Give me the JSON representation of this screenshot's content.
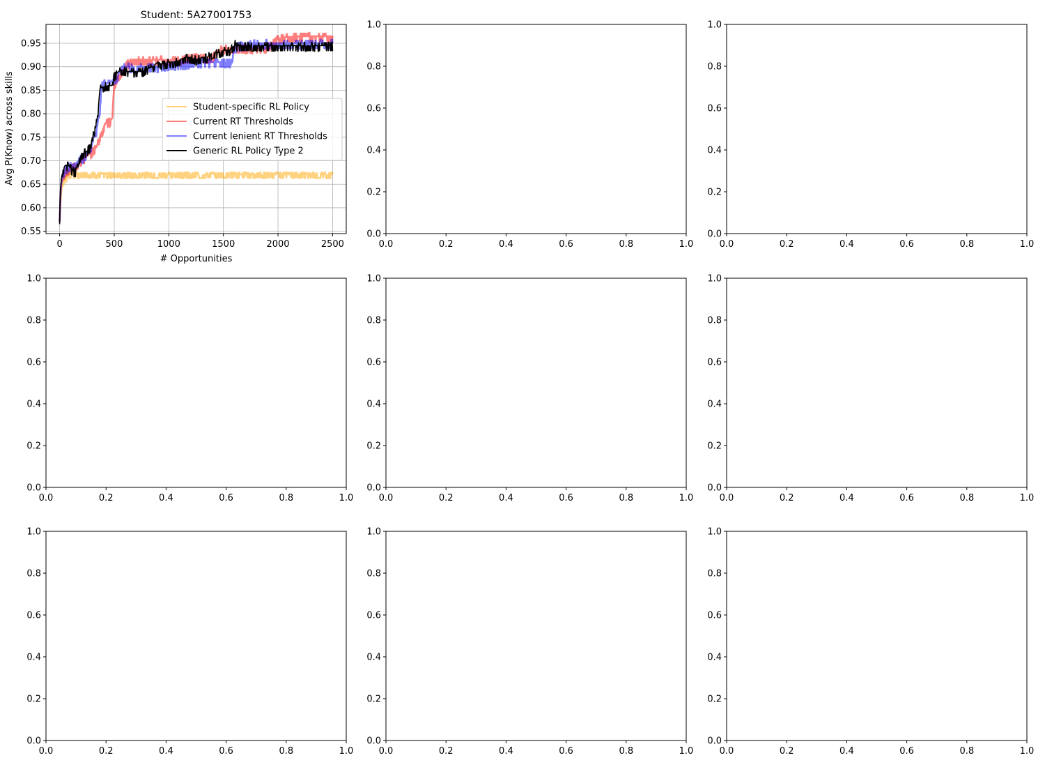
{
  "figure": {
    "background": "#ffffff"
  },
  "chart_data": [
    {
      "type": "line",
      "panel": 1,
      "title": "Student: 5A27001753",
      "xlabel": "# Opportunities",
      "ylabel": "Avg P(Know) across skills",
      "xlim": [
        -125,
        2625
      ],
      "ylim": [
        0.545,
        0.99
      ],
      "xticks": [
        0,
        500,
        1000,
        1500,
        2000,
        2500
      ],
      "yticks": [
        0.55,
        0.6,
        0.65,
        0.7,
        0.75,
        0.8,
        0.85,
        0.9,
        0.95
      ],
      "ytick_labels": [
        "0.55",
        "0.60",
        "0.65",
        "0.70",
        "0.75",
        "0.80",
        "0.85",
        "0.90",
        "0.95"
      ],
      "grid": true,
      "legend": "center-right",
      "series": [
        {
          "name": "Student-specific RL Policy",
          "color": "#ffa500",
          "opacity": 0.5,
          "low": 0.663,
          "high": 0.675,
          "x": [
            0,
            10,
            25,
            50,
            80,
            100,
            200,
            500,
            1000,
            1500,
            2000,
            2500
          ],
          "y": [
            0.57,
            0.62,
            0.655,
            0.665,
            0.67,
            0.67,
            0.67,
            0.67,
            0.67,
            0.67,
            0.67,
            0.67
          ]
        },
        {
          "name": "Current RT Thresholds",
          "color": "#ff0000",
          "opacity": 0.5,
          "x": [
            0,
            10,
            25,
            50,
            100,
            150,
            200,
            250,
            300,
            340,
            380,
            420,
            460,
            480,
            500,
            530,
            570,
            620,
            650,
            700,
            800,
            900,
            1000,
            1100,
            1200,
            1300,
            1400,
            1450,
            1500,
            1600,
            1700,
            1800,
            1900,
            2000,
            2100,
            2200,
            2300,
            2400,
            2500
          ],
          "y": [
            0.57,
            0.64,
            0.67,
            0.675,
            0.685,
            0.69,
            0.7,
            0.71,
            0.72,
            0.73,
            0.76,
            0.78,
            0.785,
            0.79,
            0.86,
            0.88,
            0.89,
            0.905,
            0.915,
            0.915,
            0.915,
            0.915,
            0.915,
            0.915,
            0.92,
            0.92,
            0.92,
            0.935,
            0.94,
            0.94,
            0.94,
            0.94,
            0.94,
            0.96,
            0.965,
            0.965,
            0.965,
            0.965,
            0.965
          ]
        },
        {
          "name": "Current lenient RT Thresholds",
          "color": "#0000ff",
          "opacity": 0.5,
          "x": [
            0,
            10,
            25,
            50,
            100,
            150,
            200,
            250,
            300,
            340,
            370,
            380,
            420,
            460,
            500,
            530,
            570,
            650,
            700,
            800,
            900,
            1000,
            1100,
            1150,
            1200,
            1300,
            1400,
            1500,
            1560,
            1620,
            1700,
            1800,
            1900,
            2000,
            2100,
            2200,
            2300,
            2400,
            2500
          ],
          "y": [
            0.57,
            0.64,
            0.67,
            0.68,
            0.69,
            0.695,
            0.705,
            0.715,
            0.735,
            0.77,
            0.8,
            0.86,
            0.865,
            0.865,
            0.875,
            0.88,
            0.9,
            0.9,
            0.9,
            0.9,
            0.9,
            0.905,
            0.905,
            0.905,
            0.91,
            0.91,
            0.91,
            0.91,
            0.91,
            0.945,
            0.945,
            0.95,
            0.95,
            0.95,
            0.95,
            0.95,
            0.95,
            0.95,
            0.95
          ]
        },
        {
          "name": "Generic RL Policy Type 2",
          "color": "#000000",
          "opacity": 1.0,
          "x": [
            0,
            5,
            15,
            30,
            50,
            80,
            100,
            120,
            140,
            150,
            170,
            200,
            250,
            280,
            300,
            330,
            350,
            370,
            380,
            420,
            450,
            480,
            500,
            540,
            580,
            620,
            650,
            700,
            750,
            800,
            850,
            900,
            950,
            1000,
            1050,
            1100,
            1150,
            1200,
            1250,
            1300,
            1350,
            1400,
            1450,
            1500,
            1550,
            1600,
            1610,
            1620,
            1650,
            1700,
            1800,
            1900,
            2000,
            2100,
            2200,
            2300,
            2400,
            2500
          ],
          "y": [
            0.565,
            0.63,
            0.66,
            0.68,
            0.69,
            0.69,
            0.685,
            0.68,
            0.675,
            0.68,
            0.7,
            0.715,
            0.72,
            0.73,
            0.75,
            0.77,
            0.8,
            0.855,
            0.855,
            0.86,
            0.86,
            0.86,
            0.88,
            0.89,
            0.895,
            0.89,
            0.89,
            0.89,
            0.89,
            0.895,
            0.9,
            0.91,
            0.905,
            0.91,
            0.91,
            0.915,
            0.92,
            0.92,
            0.915,
            0.92,
            0.92,
            0.93,
            0.93,
            0.935,
            0.935,
            0.945,
            0.96,
            0.945,
            0.945,
            0.945,
            0.945,
            0.945,
            0.945,
            0.945,
            0.945,
            0.945,
            0.945,
            0.945
          ]
        }
      ]
    },
    {
      "type": "line",
      "panel": 2,
      "xlim": [
        0,
        1
      ],
      "ylim": [
        0,
        1
      ],
      "xticks": [
        0,
        0.2,
        0.4,
        0.6,
        0.8,
        1.0
      ],
      "yticks": [
        0,
        0.2,
        0.4,
        0.6,
        0.8,
        1.0
      ],
      "grid": false,
      "series": []
    },
    {
      "type": "line",
      "panel": 3,
      "xlim": [
        0,
        1
      ],
      "ylim": [
        0,
        1
      ],
      "xticks": [
        0,
        0.2,
        0.4,
        0.6,
        0.8,
        1.0
      ],
      "yticks": [
        0,
        0.2,
        0.4,
        0.6,
        0.8,
        1.0
      ],
      "grid": false,
      "series": []
    },
    {
      "type": "line",
      "panel": 4,
      "xlim": [
        0,
        1
      ],
      "ylim": [
        0,
        1
      ],
      "xticks": [
        0,
        0.2,
        0.4,
        0.6,
        0.8,
        1.0
      ],
      "yticks": [
        0,
        0.2,
        0.4,
        0.6,
        0.8,
        1.0
      ],
      "grid": false,
      "series": []
    },
    {
      "type": "line",
      "panel": 5,
      "xlim": [
        0,
        1
      ],
      "ylim": [
        0,
        1
      ],
      "xticks": [
        0,
        0.2,
        0.4,
        0.6,
        0.8,
        1.0
      ],
      "yticks": [
        0,
        0.2,
        0.4,
        0.6,
        0.8,
        1.0
      ],
      "grid": false,
      "series": []
    },
    {
      "type": "line",
      "panel": 6,
      "xlim": [
        0,
        1
      ],
      "ylim": [
        0,
        1
      ],
      "xticks": [
        0,
        0.2,
        0.4,
        0.6,
        0.8,
        1.0
      ],
      "yticks": [
        0,
        0.2,
        0.4,
        0.6,
        0.8,
        1.0
      ],
      "grid": false,
      "series": []
    },
    {
      "type": "line",
      "panel": 7,
      "xlim": [
        0,
        1
      ],
      "ylim": [
        0,
        1
      ],
      "xticks": [
        0,
        0.2,
        0.4,
        0.6,
        0.8,
        1.0
      ],
      "yticks": [
        0,
        0.2,
        0.4,
        0.6,
        0.8,
        1.0
      ],
      "grid": false,
      "series": []
    },
    {
      "type": "line",
      "panel": 8,
      "xlim": [
        0,
        1
      ],
      "ylim": [
        0,
        1
      ],
      "xticks": [
        0,
        0.2,
        0.4,
        0.6,
        0.8,
        1.0
      ],
      "yticks": [
        0,
        0.2,
        0.4,
        0.6,
        0.8,
        1.0
      ],
      "grid": false,
      "series": []
    },
    {
      "type": "line",
      "panel": 9,
      "xlim": [
        0,
        1
      ],
      "ylim": [
        0,
        1
      ],
      "xticks": [
        0,
        0.2,
        0.4,
        0.6,
        0.8,
        1.0
      ],
      "yticks": [
        0,
        0.2,
        0.4,
        0.6,
        0.8,
        1.0
      ],
      "grid": false,
      "series": []
    }
  ]
}
